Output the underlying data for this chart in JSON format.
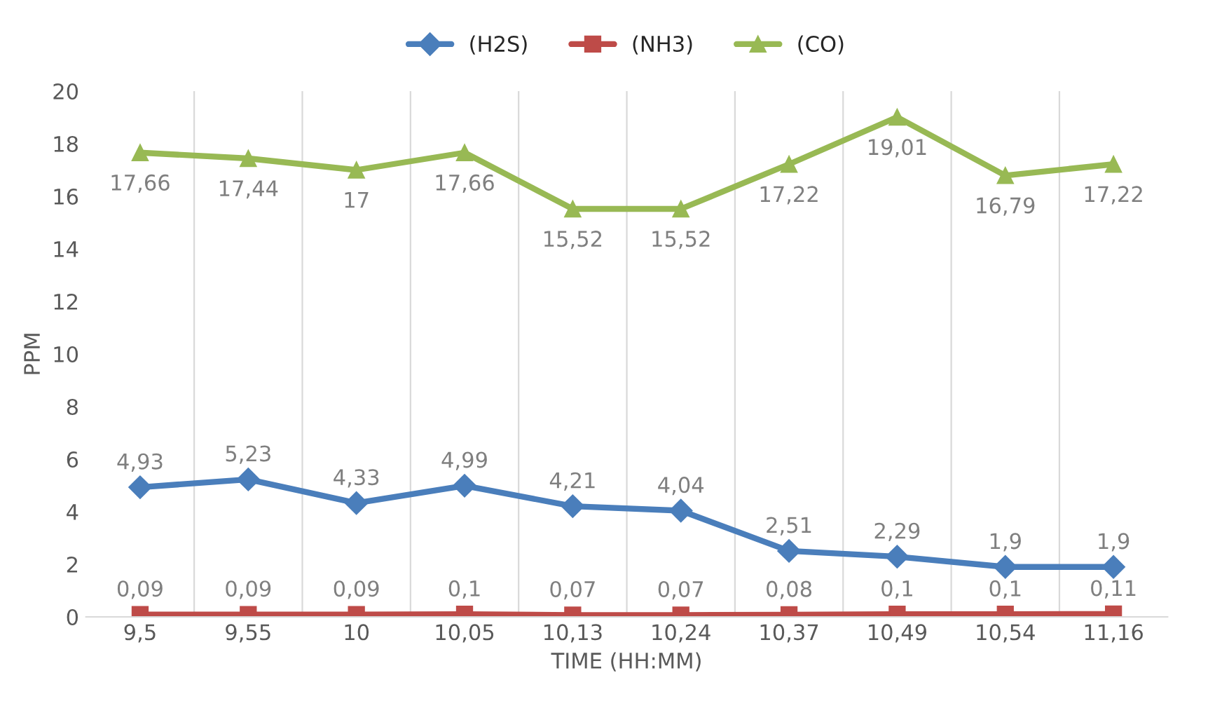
{
  "chart_data": {
    "type": "line",
    "xlabel": "TIME (HH:MM)",
    "ylabel": "PPM",
    "categories": [
      "9,5",
      "9,55",
      "10",
      "10,05",
      "10,13",
      "10,24",
      "10,37",
      "10,49",
      "10,54",
      "11,16"
    ],
    "series": [
      {
        "name": "(H2S)",
        "color": "#4a7ebb",
        "marker": "diamond",
        "values": [
          4.93,
          5.23,
          4.33,
          4.99,
          4.21,
          4.04,
          2.51,
          2.29,
          1.9,
          1.9
        ],
        "value_labels": [
          "4,93",
          "5,23",
          "4,33",
          "4,99",
          "4,21",
          "4,04",
          "2,51",
          "2,29",
          "1,9",
          "1,9"
        ]
      },
      {
        "name": "(NH3)",
        "color": "#be4b48",
        "marker": "square",
        "values": [
          0.09,
          0.09,
          0.09,
          0.1,
          0.07,
          0.07,
          0.08,
          0.1,
          0.1,
          0.11
        ],
        "value_labels": [
          "0,09",
          "0,09",
          "0,09",
          "0,1",
          "0,07",
          "0,07",
          "0,08",
          "0,1",
          "0,1",
          "0,11"
        ]
      },
      {
        "name": "(CO)",
        "color": "#98b954",
        "marker": "triangle",
        "values": [
          17.66,
          17.44,
          17,
          17.66,
          15.52,
          15.52,
          17.22,
          19.01,
          16.79,
          17.22
        ],
        "value_labels": [
          "17,66",
          "17,44",
          "17",
          "17,66",
          "15,52",
          "15,52",
          "17,22",
          "19,01",
          "16,79",
          "17,22"
        ]
      }
    ],
    "ylim": [
      0,
      20
    ],
    "yticks": [
      0,
      2,
      4,
      6,
      8,
      10,
      12,
      14,
      16,
      18,
      20
    ],
    "grid": "x",
    "legend": "top"
  }
}
